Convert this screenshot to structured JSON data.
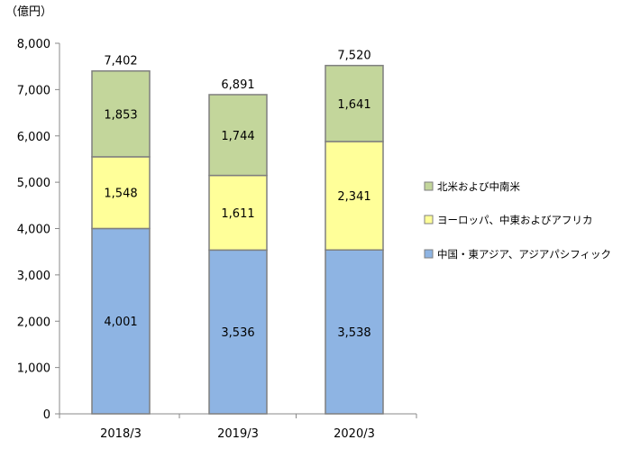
{
  "chart_data": {
    "type": "bar",
    "stacked": true,
    "unit_label": "（億円）",
    "categories": [
      "2018/3",
      "2019/3",
      "2020/3"
    ],
    "series": [
      {
        "name": "中国・東アジア、アジアパシフィック",
        "values": [
          4001,
          3536,
          3538
        ],
        "color": "#8eb4e3"
      },
      {
        "name": "ヨーロッパ、中東およびアフリカ",
        "values": [
          1548,
          1611,
          2341
        ],
        "color": "#ffff99"
      },
      {
        "name": "北米および中南米",
        "values": [
          1853,
          1744,
          1641
        ],
        "color": "#c3d69b"
      }
    ],
    "totals": [
      7402,
      6891,
      7520
    ],
    "value_labels": [
      [
        "4,001",
        "3,536",
        "3,538"
      ],
      [
        "1,548",
        "1,611",
        "2,341"
      ],
      [
        "1,853",
        "1,744",
        "1,641"
      ]
    ],
    "total_labels": [
      "7,402",
      "6,891",
      "7,520"
    ],
    "ylim": [
      0,
      8000
    ],
    "yticks": [
      0,
      1000,
      2000,
      3000,
      4000,
      5000,
      6000,
      7000,
      8000
    ],
    "ytick_labels": [
      "0",
      "1,000",
      "2,000",
      "3,000",
      "4,000",
      "5,000",
      "6,000",
      "7,000",
      "8,000"
    ],
    "legend_position": "right",
    "grid": false
  }
}
